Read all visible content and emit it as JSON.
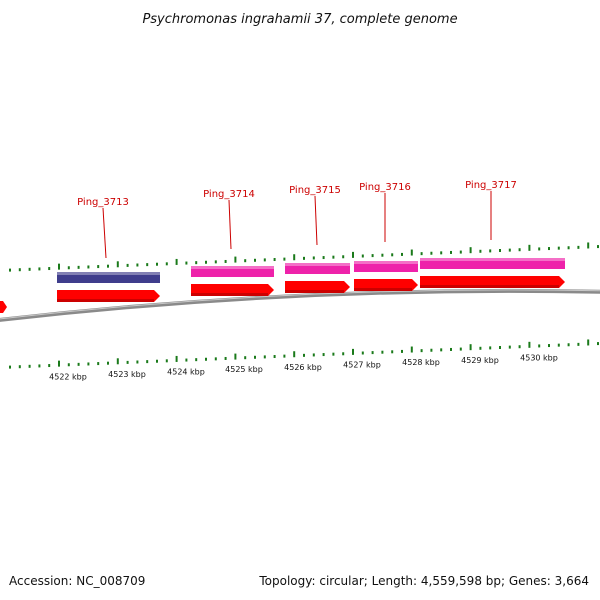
{
  "title": "Psychromonas ingrahamii 37, complete genome",
  "footer": {
    "accession": "Accession: NC_008709",
    "topology": "Topology: circular; Length: 4,559,598 bp; Genes: 3,664"
  },
  "colors": {
    "cds": "#ff0000",
    "gene_magenta": "#ee22aa",
    "gene_purple": "#3f3d8c",
    "backbone": "#8a8a8a",
    "tick": "#1a7a1a",
    "label": "#cc0000"
  },
  "genes": [
    {
      "id": "Ping_3713",
      "label": "Ping_3713",
      "color": "purple"
    },
    {
      "id": "Ping_3714",
      "label": "Ping_3714",
      "color": "magenta"
    },
    {
      "id": "Ping_3715",
      "label": "Ping_3715",
      "color": "magenta"
    },
    {
      "id": "Ping_3716",
      "label": "Ping_3716",
      "color": "magenta"
    },
    {
      "id": "Ping_3717",
      "label": "Ping_3717",
      "color": "magenta"
    }
  ],
  "kbp_labels": [
    "4522 kbp",
    "4523 kbp",
    "4524 kbp",
    "4525 kbp",
    "4526 kbp",
    "4527 kbp",
    "4528 kbp",
    "4529 kbp",
    "4530 kbp"
  ]
}
